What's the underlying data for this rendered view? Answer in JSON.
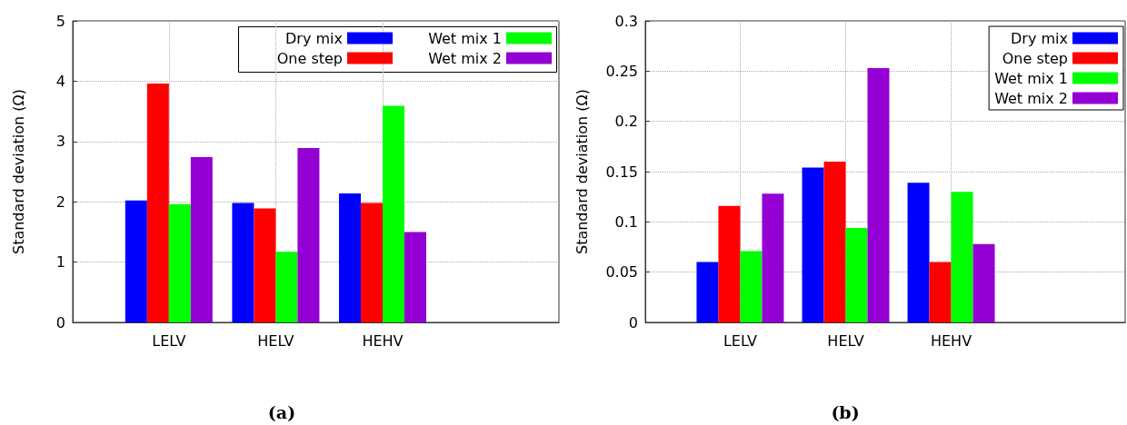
{
  "chart_data": [
    {
      "type": "bar",
      "title": "(a)",
      "ylabel": "Standard deviation (Ω)",
      "categories": [
        "LELV",
        "HELV",
        "HEHV"
      ],
      "series": [
        {
          "name": "Dry mix",
          "color": "#0000ff",
          "values": [
            2.02,
            1.98,
            2.14
          ]
        },
        {
          "name": "One step",
          "color": "#ff0000",
          "values": [
            3.96,
            1.89,
            1.98
          ]
        },
        {
          "name": "Wet mix 1",
          "color": "#00ff00",
          "values": [
            1.96,
            1.17,
            3.59
          ]
        },
        {
          "name": "Wet mix 2",
          "color": "#9400d3",
          "values": [
            2.74,
            2.89,
            1.5
          ]
        }
      ],
      "ylim": [
        0,
        5
      ],
      "yticks": [
        0,
        1,
        2,
        3,
        4,
        5
      ],
      "grid": true,
      "legend": "top right"
    },
    {
      "type": "bar",
      "title": "(b)",
      "ylabel": "Standard deviation (Ω)",
      "categories": [
        "LELV",
        "HELV",
        "HEHV"
      ],
      "series": [
        {
          "name": "Dry mix",
          "color": "#0000ff",
          "values": [
            0.06,
            0.154,
            0.139
          ]
        },
        {
          "name": "One step",
          "color": "#ff0000",
          "values": [
            0.116,
            0.16,
            0.06
          ]
        },
        {
          "name": "Wet mix 1",
          "color": "#00ff00",
          "values": [
            0.071,
            0.094,
            0.13
          ]
        },
        {
          "name": "Wet mix 2",
          "color": "#9400d3",
          "values": [
            0.128,
            0.253,
            0.078
          ]
        }
      ],
      "ylim": [
        0,
        0.3
      ],
      "yticks": [
        0,
        0.05,
        0.1,
        0.15,
        0.2,
        0.25,
        0.3
      ],
      "grid": true,
      "legend": "top right"
    }
  ]
}
